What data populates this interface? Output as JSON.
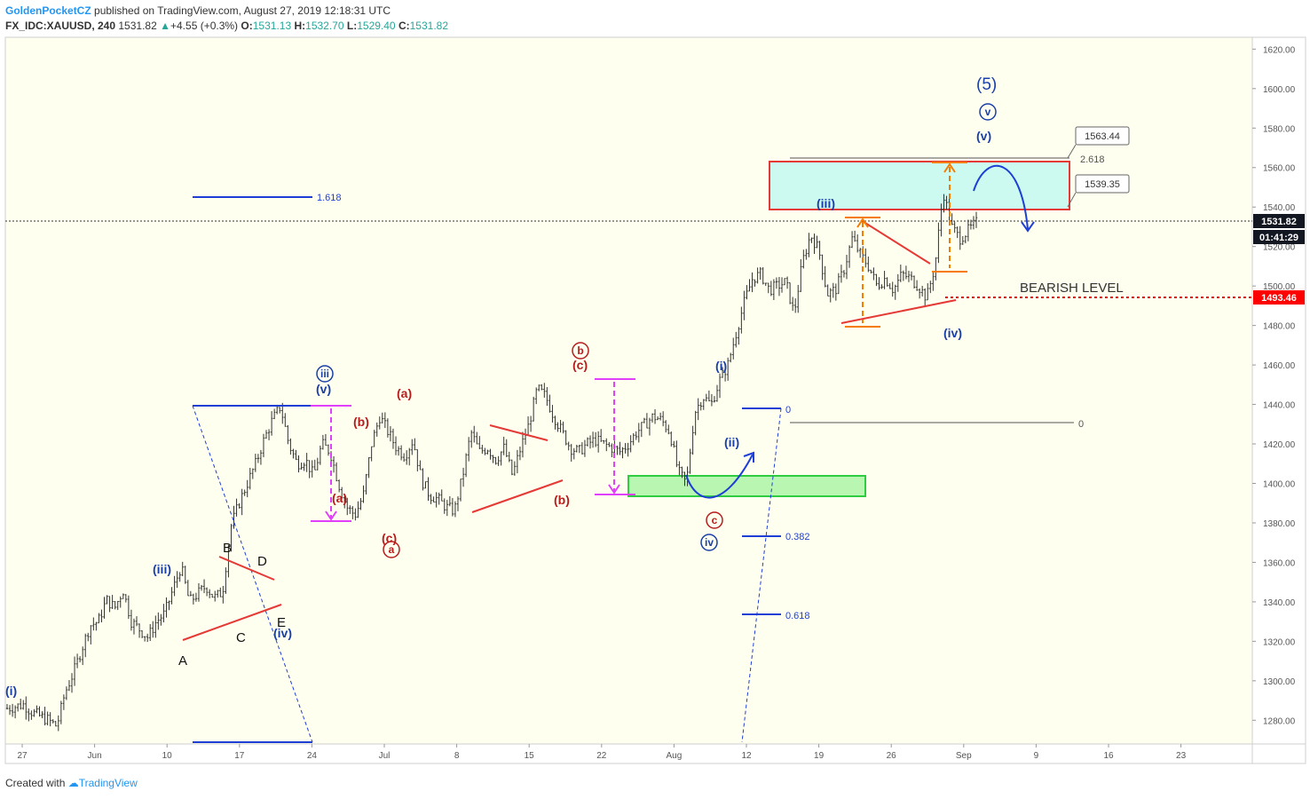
{
  "header": {
    "author": "GoldenPocketCZ",
    "published_text": "published on TradingView.com, August 27, 2019 12:18:31 UTC",
    "symbol": "FX_IDC:XAUUSD, 240",
    "last": "1531.82",
    "change": "+4.55 (+0.3%)",
    "o_label": "O:",
    "o": "1531.13",
    "h_label": "H:",
    "h": "1532.70",
    "l_label": "L:",
    "l": "1529.40",
    "c_label": "C:",
    "c": "1531.82"
  },
  "footer": {
    "created_with": "Created with",
    "brand": "TradingView"
  },
  "chart_data": {
    "type": "candlestick",
    "y_ticks": [
      1280,
      1300,
      1320,
      1340,
      1360,
      1380,
      1400,
      1420,
      1440,
      1460,
      1480,
      1500,
      1520,
      1540,
      1560,
      1580,
      1600,
      1620
    ],
    "ylim": [
      1268,
      1626
    ],
    "x_ticks": [
      "27",
      "Jun",
      "10",
      "17",
      "24",
      "Jul",
      "8",
      "15",
      "22",
      "Aug",
      "12",
      "19",
      "26",
      "Sep",
      "9",
      "16",
      "23"
    ],
    "last_price": {
      "value": 1531.82,
      "label": "1531.82",
      "countdown": "01:41:29"
    },
    "bearish_level": {
      "value": 1493.46,
      "label": "1493.46",
      "text": "BEARISH LEVEL"
    },
    "price_path": [
      [
        0,
        1286
      ],
      [
        2,
        1288
      ],
      [
        3,
        1284
      ],
      [
        5,
        1280
      ],
      [
        6,
        1277
      ],
      [
        7,
        1294
      ],
      [
        8,
        1304
      ],
      [
        9,
        1316
      ],
      [
        10,
        1328
      ],
      [
        11,
        1330
      ],
      [
        12,
        1341
      ],
      [
        13,
        1337
      ],
      [
        14,
        1346
      ],
      [
        15,
        1330
      ],
      [
        16,
        1326
      ],
      [
        17,
        1322
      ],
      [
        18,
        1330
      ],
      [
        19,
        1334
      ],
      [
        20,
        1346
      ],
      [
        21,
        1358
      ],
      [
        22,
        1340
      ],
      [
        23,
        1344
      ],
      [
        24,
        1348
      ],
      [
        25,
        1342
      ],
      [
        26,
        1345
      ],
      [
        27,
        1378
      ],
      [
        28,
        1390
      ],
      [
        29,
        1400
      ],
      [
        30,
        1410
      ],
      [
        31,
        1422
      ],
      [
        32,
        1432
      ],
      [
        33,
        1439
      ],
      [
        34,
        1420
      ],
      [
        35,
        1410
      ],
      [
        36,
        1412
      ],
      [
        37,
        1404
      ],
      [
        38,
        1420
      ],
      [
        39,
        1416
      ],
      [
        40,
        1400
      ],
      [
        41,
        1388
      ],
      [
        42,
        1384
      ],
      [
        43,
        1394
      ],
      [
        44,
        1420
      ],
      [
        45,
        1434
      ],
      [
        46,
        1426
      ],
      [
        47,
        1418
      ],
      [
        48,
        1414
      ],
      [
        49,
        1422
      ],
      [
        50,
        1402
      ],
      [
        51,
        1394
      ],
      [
        52,
        1392
      ],
      [
        53,
        1388
      ],
      [
        54,
        1386
      ],
      [
        55,
        1404
      ],
      [
        56,
        1426
      ],
      [
        57,
        1416
      ],
      [
        58,
        1418
      ],
      [
        59,
        1412
      ],
      [
        60,
        1418
      ],
      [
        61,
        1404
      ],
      [
        62,
        1418
      ],
      [
        63,
        1430
      ],
      [
        64,
        1448
      ],
      [
        65,
        1444
      ],
      [
        66,
        1434
      ],
      [
        67,
        1426
      ],
      [
        68,
        1418
      ],
      [
        69,
        1416
      ],
      [
        70,
        1420
      ],
      [
        71,
        1422
      ],
      [
        72,
        1420
      ],
      [
        73,
        1418
      ],
      [
        74,
        1416
      ],
      [
        75,
        1420
      ],
      [
        76,
        1426
      ],
      [
        77,
        1430
      ],
      [
        78,
        1434
      ],
      [
        79,
        1432
      ],
      [
        80,
        1426
      ],
      [
        81,
        1406
      ],
      [
        82,
        1400
      ],
      [
        83,
        1436
      ],
      [
        84,
        1444
      ],
      [
        85,
        1440
      ],
      [
        86,
        1452
      ],
      [
        87,
        1460
      ],
      [
        88,
        1476
      ],
      [
        89,
        1492
      ],
      [
        90,
        1504
      ],
      [
        91,
        1506
      ],
      [
        92,
        1498
      ],
      [
        93,
        1500
      ],
      [
        94,
        1502
      ],
      [
        95,
        1486
      ],
      [
        96,
        1512
      ],
      [
        97,
        1526
      ],
      [
        98,
        1518
      ],
      [
        99,
        1496
      ],
      [
        100,
        1498
      ],
      [
        101,
        1508
      ],
      [
        102,
        1524
      ],
      [
        103,
        1516
      ],
      [
        104,
        1510
      ],
      [
        105,
        1500
      ],
      [
        106,
        1504
      ],
      [
        107,
        1498
      ],
      [
        108,
        1506
      ],
      [
        109,
        1504
      ],
      [
        110,
        1500
      ],
      [
        111,
        1494
      ],
      [
        112,
        1510
      ],
      [
        113,
        1548
      ],
      [
        114,
        1530
      ],
      [
        115,
        1524
      ],
      [
        116,
        1528
      ],
      [
        117,
        1532
      ]
    ],
    "annotations": [
      "1.618",
      "0",
      "0.382",
      "0.618",
      "2.618",
      "1563.44",
      "1539.35",
      "(i)",
      "(ii)",
      "(iii)",
      "(iv)",
      "(v)",
      "(5)",
      "v",
      "iii",
      "iv",
      "a",
      "b",
      "c",
      "(a)",
      "(b)",
      "(c)",
      "A",
      "B",
      "C",
      "D",
      "E"
    ],
    "colors": {
      "up": "#333333",
      "impulse_label": "#1a3fa6",
      "corrective_label": "#b71c1c",
      "triangle": "#e53935",
      "zone_fill": "#ccfaf0",
      "zone_border": "#e53935",
      "support_fill": "#b9f6b1",
      "support_border": "#2ecc40",
      "measure": "#f57c00",
      "magenta": "#e040fb",
      "fib": "#1e3fd6",
      "bearish": "#ff0000"
    }
  }
}
